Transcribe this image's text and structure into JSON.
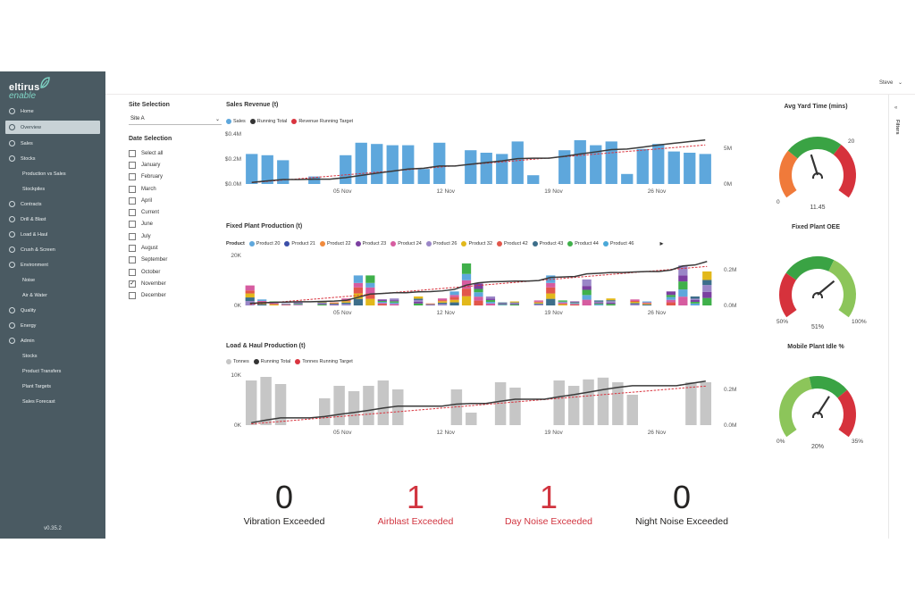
{
  "app": {
    "logo_top": "eltirus",
    "logo_bottom": "enable",
    "user": "Steve",
    "version": "v0.35.2"
  },
  "nav": [
    {
      "label": "Home",
      "type": "main"
    },
    {
      "label": "Overview",
      "type": "main",
      "active": true
    },
    {
      "label": "Sales",
      "type": "main"
    },
    {
      "label": "Stocks",
      "type": "main"
    },
    {
      "label": "Production vs Sales",
      "type": "sub"
    },
    {
      "label": "Stockpiles",
      "type": "sub"
    },
    {
      "label": "Contracts",
      "type": "main"
    },
    {
      "label": "Drill & Blast",
      "type": "main"
    },
    {
      "label": "Load & Haul",
      "type": "main"
    },
    {
      "label": "Crush & Screen",
      "type": "main"
    },
    {
      "label": "Environment",
      "type": "main"
    },
    {
      "label": "Noise",
      "type": "sub"
    },
    {
      "label": "Air & Water",
      "type": "sub"
    },
    {
      "label": "Quality",
      "type": "main"
    },
    {
      "label": "Energy",
      "type": "main"
    },
    {
      "label": "Admin",
      "type": "main"
    },
    {
      "label": "Stocks",
      "type": "sub"
    },
    {
      "label": "Product Transfers",
      "type": "sub"
    },
    {
      "label": "Plant Targets",
      "type": "sub"
    },
    {
      "label": "Sales Forecast",
      "type": "sub"
    }
  ],
  "filters_label": "Filters",
  "site": {
    "title": "Site Selection",
    "value": "Site A"
  },
  "dates": {
    "title": "Date Selection",
    "options": [
      {
        "label": "Select all",
        "checked": false
      },
      {
        "label": "January",
        "checked": false
      },
      {
        "label": "February",
        "checked": false
      },
      {
        "label": "March",
        "checked": false
      },
      {
        "label": "April",
        "checked": false
      },
      {
        "label": "Current",
        "checked": false
      },
      {
        "label": "June",
        "checked": false
      },
      {
        "label": "July",
        "checked": false
      },
      {
        "label": "August",
        "checked": false
      },
      {
        "label": "September",
        "checked": false
      },
      {
        "label": "October",
        "checked": false
      },
      {
        "label": "November",
        "checked": true
      },
      {
        "label": "December",
        "checked": false
      }
    ]
  },
  "colors": {
    "blue": "#5ea7dc",
    "grey": "#c6c6c6",
    "line": "#3a3a3a",
    "target": "#d9343f",
    "red_text": "#d1343f"
  },
  "chart_data": [
    {
      "type": "bar",
      "title": "Sales Revenue (t)",
      "legend": [
        {
          "name": "Sales",
          "color": "#5ea7dc"
        },
        {
          "name": "Running Total",
          "color": "#333333"
        },
        {
          "name": "Revenue Running Target",
          "color": "#d9343f"
        }
      ],
      "x_ticks": [
        "05 Nov",
        "12 Nov",
        "19 Nov",
        "26 Nov"
      ],
      "y_ticks_left": [
        "$0.4M",
        "$0.2M",
        "$0.0M"
      ],
      "y_ticks_right": [
        "5M",
        "0M"
      ],
      "ylim": [
        0,
        0.4
      ],
      "values": [
        0.24,
        0.23,
        0.19,
        0,
        0.06,
        0,
        0.23,
        0.33,
        0.32,
        0.31,
        0.31,
        0.12,
        0.33,
        0,
        0.27,
        0.25,
        0.24,
        0.34,
        0.07,
        0,
        0.27,
        0.35,
        0.31,
        0.34,
        0.08,
        0.28,
        0.32,
        0.26,
        0.25,
        0.24
      ]
    },
    {
      "type": "bar",
      "title": "Fixed Plant Production (t)",
      "legend_prefix": "Product",
      "legend": [
        {
          "name": "Product 20",
          "color": "#5ea7dc"
        },
        {
          "name": "Product 21",
          "color": "#3b4ea8"
        },
        {
          "name": "Product 22",
          "color": "#f08a3c"
        },
        {
          "name": "Product 23",
          "color": "#7b3fa0"
        },
        {
          "name": "Product 24",
          "color": "#d65ca0"
        },
        {
          "name": "Product 26",
          "color": "#9a86c7"
        },
        {
          "name": "Product 32",
          "color": "#e2b81b"
        },
        {
          "name": "Product 42",
          "color": "#e2564b"
        },
        {
          "name": "Product 43",
          "color": "#3d6e8a"
        },
        {
          "name": "Product 44",
          "color": "#3fb04a"
        },
        {
          "name": "Product 46",
          "color": "#4aa8d8"
        }
      ],
      "x_ticks": [
        "05 Nov",
        "12 Nov",
        "19 Nov",
        "26 Nov"
      ],
      "y_ticks_left": [
        "20K",
        "0K"
      ],
      "y_ticks_right": [
        "0.2M",
        "0.0M"
      ],
      "ylim": [
        0,
        25000
      ],
      "values": [
        10000,
        3000,
        2000,
        1000,
        1500,
        0,
        2000,
        1500,
        3500,
        15000,
        15000,
        3000,
        3500,
        0,
        4500,
        1000,
        3500,
        7000,
        21000,
        11000,
        4500,
        1500,
        2000,
        0,
        2500,
        15000,
        2500,
        2000,
        13000,
        2500,
        3500,
        0,
        3000,
        2000,
        0,
        7000,
        20000,
        4500,
        17000
      ]
    },
    {
      "type": "bar",
      "title": "Load & Haul Production (t)",
      "legend": [
        {
          "name": "Tonnes",
          "color": "#c6c6c6"
        },
        {
          "name": "Running Total",
          "color": "#333333"
        },
        {
          "name": "Tonnes Running Target",
          "color": "#d9343f"
        }
      ],
      "x_ticks": [
        "05 Nov",
        "12 Nov",
        "19 Nov",
        "26 Nov"
      ],
      "y_ticks_left": [
        "10K",
        "0K"
      ],
      "y_ticks_right": [
        "0.2M",
        "0.0M"
      ],
      "ylim": [
        0,
        14000
      ],
      "values": [
        12500,
        13500,
        11500,
        0,
        0,
        7500,
        11000,
        9500,
        11000,
        12500,
        10000,
        0,
        0,
        0,
        10000,
        3500,
        0,
        12000,
        10500,
        0,
        0,
        12500,
        11000,
        12800,
        13300,
        12000,
        8500,
        0,
        0,
        0,
        12000,
        12000
      ]
    }
  ],
  "gauges": [
    {
      "title": "Avg Yard Time (mins)",
      "min": "0",
      "max": "20",
      "value": "11.45",
      "pointer": 11.45,
      "range": 20
    },
    {
      "title": "Fixed Plant OEE",
      "min": "50%",
      "max": "100%",
      "value": "51%",
      "pointer": 51,
      "range_min": 50,
      "range_max": 100
    },
    {
      "title": "Mobile Plant Idle %",
      "min": "0%",
      "max": "35%",
      "value": "20%",
      "pointer": 20,
      "range": 35
    }
  ],
  "kpis": [
    {
      "value": "0",
      "label": "Vibration Exceeded",
      "alert": false
    },
    {
      "value": "1",
      "label": "Airblast Exceeded",
      "alert": true
    },
    {
      "value": "1",
      "label": "Day Noise Exceeded",
      "alert": true
    },
    {
      "value": "0",
      "label": "Night Noise Exceeded",
      "alert": false
    }
  ]
}
